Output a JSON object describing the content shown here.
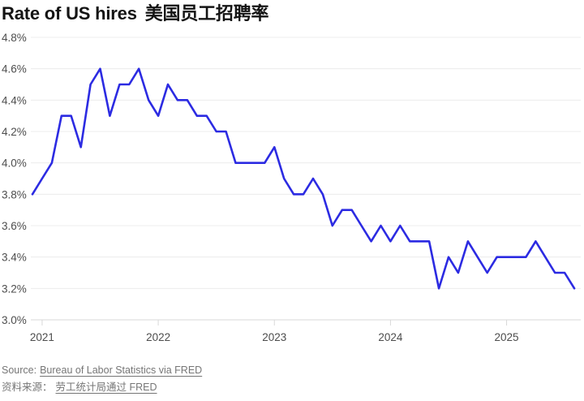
{
  "title": {
    "en": "Rate of US hires",
    "zh": "美国员工招聘率"
  },
  "source": {
    "en_prefix": "Source:",
    "en_link": "Bureau of Labor Statistics via FRED",
    "zh_prefix": "资料来源：",
    "zh_link": "劳工统计局通过 FRED"
  },
  "colors": {
    "line": "#2c2be2",
    "grid": "#ececec",
    "axis": "#d8d8d8",
    "label": "#4d4d4d",
    "title": "#141414",
    "source": "#767676"
  },
  "chart_data": {
    "type": "line",
    "title": "Rate of US hires 美国员工招聘率",
    "xlabel": "",
    "ylabel": "",
    "unit": "%",
    "grid": "horizontal",
    "legend": "none",
    "ylim": [
      3.0,
      4.8
    ],
    "y_tick_labels": [
      "4.8%",
      "4.6%",
      "4.4%",
      "4.2%",
      "4.0%",
      "3.8%",
      "3.6%",
      "3.4%",
      "3.2%",
      "3.0%"
    ],
    "x_tick_labels": [
      "2021",
      "2022",
      "2023",
      "2024",
      "2025"
    ],
    "months": [
      "2020-12",
      "2021-01",
      "2021-02",
      "2021-03",
      "2021-04",
      "2021-05",
      "2021-06",
      "2021-07",
      "2021-08",
      "2021-09",
      "2021-10",
      "2021-11",
      "2021-12",
      "2022-01",
      "2022-02",
      "2022-03",
      "2022-04",
      "2022-05",
      "2022-06",
      "2022-07",
      "2022-08",
      "2022-09",
      "2022-10",
      "2022-11",
      "2022-12",
      "2023-01",
      "2023-02",
      "2023-03",
      "2023-04",
      "2023-05",
      "2023-06",
      "2023-07",
      "2023-08",
      "2023-09",
      "2023-10",
      "2023-11",
      "2023-12",
      "2024-01",
      "2024-02",
      "2024-03",
      "2024-04",
      "2024-05",
      "2024-06",
      "2024-07",
      "2024-08",
      "2024-09",
      "2024-10",
      "2024-11",
      "2024-12",
      "2025-01",
      "2025-02",
      "2025-03",
      "2025-04",
      "2025-05",
      "2025-06",
      "2025-07",
      "2025-08"
    ],
    "values": [
      3.8,
      3.9,
      4.0,
      4.3,
      4.3,
      4.1,
      4.5,
      4.6,
      4.3,
      4.5,
      4.5,
      4.6,
      4.4,
      4.3,
      4.5,
      4.4,
      4.4,
      4.3,
      4.3,
      4.2,
      4.2,
      4.0,
      4.0,
      4.0,
      4.0,
      4.1,
      3.9,
      3.8,
      3.8,
      3.9,
      3.8,
      3.6,
      3.7,
      3.7,
      3.6,
      3.5,
      3.6,
      3.5,
      3.6,
      3.5,
      3.5,
      3.5,
      3.2,
      3.4,
      3.3,
      3.5,
      3.4,
      3.3,
      3.4,
      3.4,
      3.4,
      3.4,
      3.5,
      3.4,
      3.3,
      3.3,
      3.2
    ]
  }
}
